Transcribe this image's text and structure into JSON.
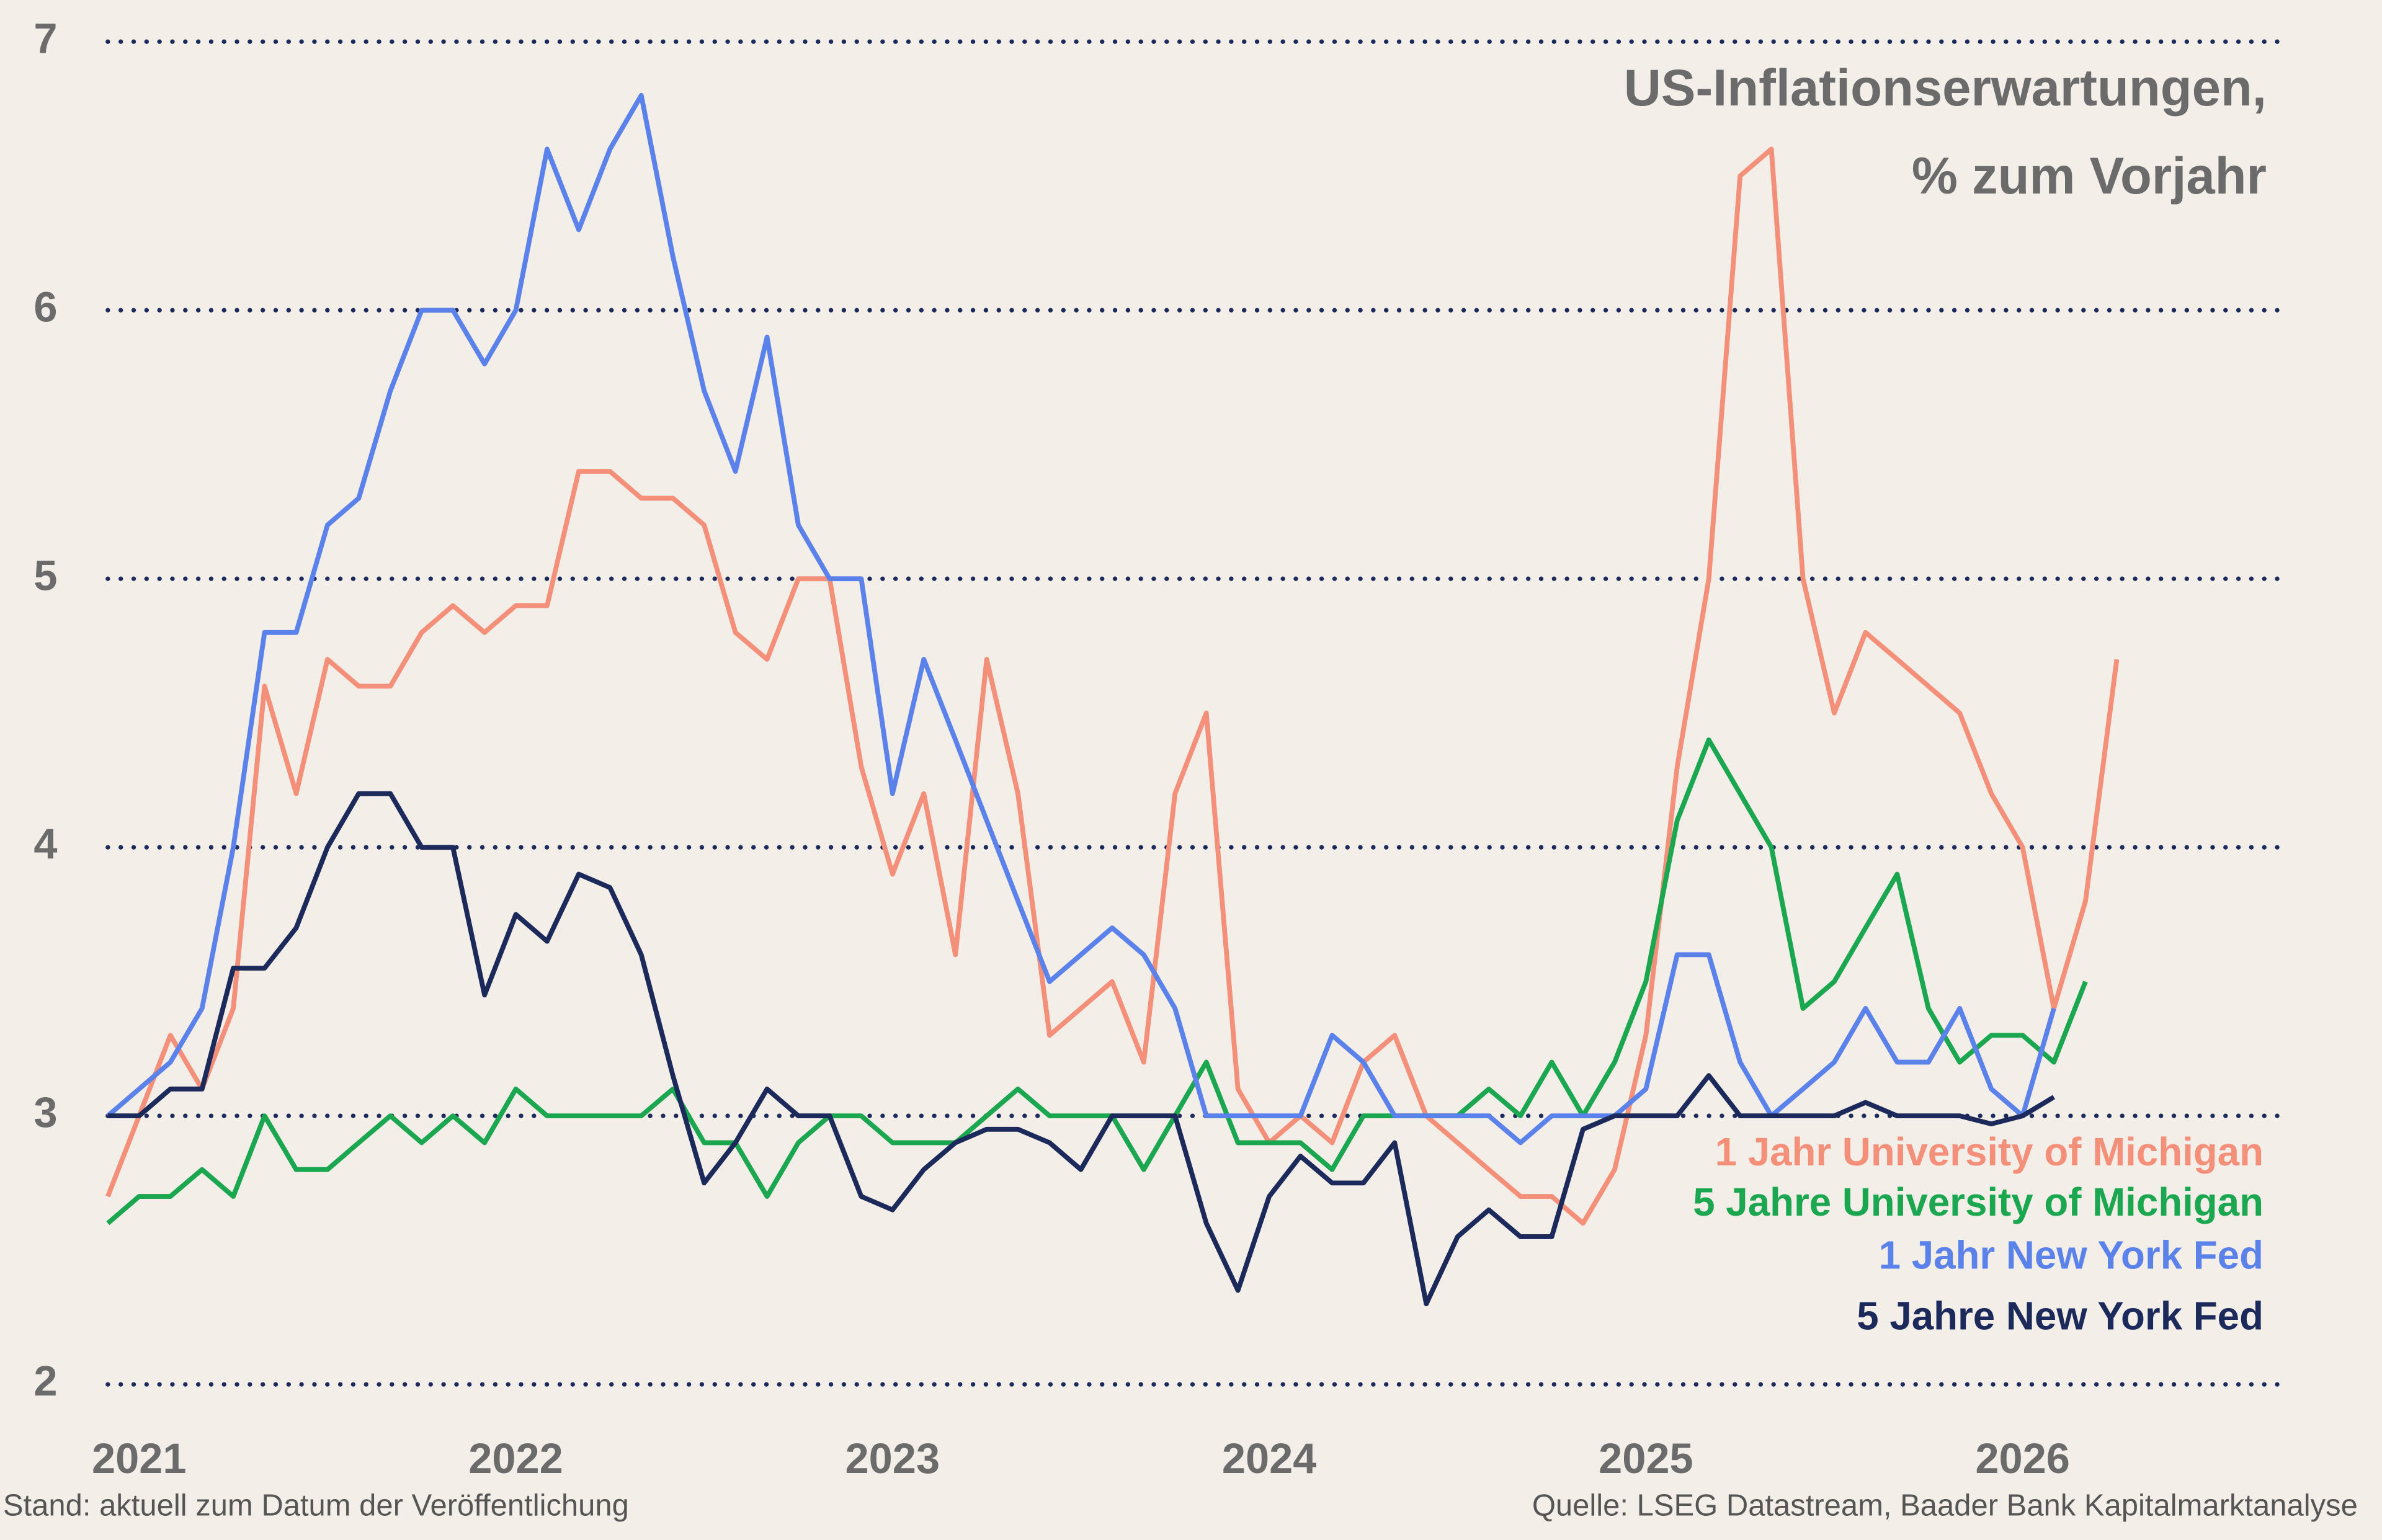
{
  "chart_data": {
    "type": "line",
    "title": [
      "US-Inflationserwartungen,",
      "% zum Vorjahr"
    ],
    "footnote": "Stand: aktuell zum Datum der Veröffentlichung",
    "source": "Quelle: LSEG Datastream, Baader Bank Kapitalmarktanalyse",
    "x": [
      2020.917,
      2021,
      2021.083,
      2021.167,
      2021.25,
      2021.333,
      2021.417,
      2021.5,
      2021.583,
      2021.667,
      2021.75,
      2021.833,
      2021.917,
      2022,
      2022.083,
      2022.167,
      2022.25,
      2022.333,
      2022.417,
      2022.5,
      2022.583,
      2022.667,
      2022.75,
      2022.833,
      2022.917,
      2023,
      2023.083,
      2023.167,
      2023.25,
      2023.333,
      2023.417,
      2023.5,
      2023.583,
      2023.667,
      2023.75,
      2023.833,
      2023.917,
      2024,
      2024.083,
      2024.167,
      2024.25,
      2024.333,
      2024.417,
      2024.5,
      2024.583,
      2024.667,
      2024.75,
      2024.833,
      2024.917,
      2025,
      2025.083,
      2025.167,
      2025.25,
      2025.333,
      2025.417,
      2025.5,
      2025.583,
      2025.667,
      2025.75,
      2025.833,
      2025.917,
      2026,
      2026.083,
      2026.167,
      2026.25
    ],
    "series": [
      {
        "name": "1 Jahr University of Michigan",
        "color": "#f4907a",
        "values": [
          2.7,
          3.0,
          3.3,
          3.1,
          3.4,
          4.6,
          4.2,
          4.7,
          4.6,
          4.6,
          4.8,
          4.9,
          4.8,
          4.9,
          4.9,
          5.4,
          5.4,
          5.3,
          5.3,
          5.2,
          4.8,
          4.7,
          5.0,
          5.0,
          4.3,
          3.9,
          4.2,
          3.6,
          4.7,
          4.2,
          3.3,
          3.4,
          3.5,
          3.2,
          4.2,
          4.5,
          3.1,
          2.9,
          3.0,
          2.9,
          3.2,
          3.3,
          3.0,
          2.9,
          2.8,
          2.7,
          2.7,
          2.6,
          2.8,
          3.3,
          4.3,
          5.0,
          6.5,
          6.6,
          5.0,
          4.5,
          4.8,
          4.7,
          4.6,
          4.5,
          4.2,
          4.0,
          3.4,
          3.8,
          4.7
        ]
      },
      {
        "name": "5 Jahre University of Michigan",
        "color": "#1ba650",
        "values": [
          2.6,
          2.7,
          2.7,
          2.8,
          2.7,
          3.0,
          2.8,
          2.8,
          2.9,
          3.0,
          2.9,
          3.0,
          2.9,
          3.1,
          3.0,
          3.0,
          3.0,
          3.0,
          3.1,
          2.9,
          2.9,
          2.7,
          2.9,
          3.0,
          3.0,
          2.9,
          2.9,
          2.9,
          3.0,
          3.1,
          3.0,
          3.0,
          3.0,
          2.8,
          3.0,
          3.2,
          2.9,
          2.9,
          2.9,
          2.8,
          3.0,
          3.0,
          3.0,
          3.0,
          3.1,
          3.0,
          3.2,
          3.0,
          3.2,
          3.5,
          4.1,
          4.4,
          4.2,
          4.0,
          3.4,
          3.5,
          3.7,
          3.9,
          3.4,
          3.2,
          3.3,
          3.3,
          3.2,
          3.5,
          null
        ]
      },
      {
        "name": "1 Jahr New York Fed",
        "color": "#5b82ea",
        "values": [
          3.0,
          3.1,
          3.2,
          3.4,
          4.0,
          4.8,
          4.8,
          5.2,
          5.3,
          5.7,
          6.0,
          6.0,
          5.8,
          6.0,
          6.6,
          6.3,
          6.6,
          6.8,
          6.2,
          5.7,
          5.4,
          5.9,
          5.2,
          5.0,
          5.0,
          4.2,
          4.7,
          4.4,
          4.1,
          3.8,
          3.5,
          3.6,
          3.7,
          3.6,
          3.4,
          3.0,
          3.0,
          3.0,
          3.0,
          3.3,
          3.2,
          3.0,
          3.0,
          3.0,
          3.0,
          2.9,
          3.0,
          3.0,
          3.0,
          3.1,
          3.6,
          3.6,
          3.2,
          3.0,
          3.1,
          3.2,
          3.4,
          3.2,
          3.2,
          3.4,
          3.1,
          3.0,
          3.4,
          null,
          null
        ]
      },
      {
        "name": "5 Jahre New York Fed",
        "color": "#1b2a5a",
        "values": [
          3.0,
          3.0,
          3.1,
          3.1,
          3.55,
          3.55,
          3.7,
          4.0,
          4.2,
          4.2,
          4.0,
          4.0,
          3.45,
          3.75,
          3.65,
          3.9,
          3.85,
          3.6,
          3.15,
          2.75,
          2.9,
          3.1,
          3.0,
          3.0,
          2.7,
          2.65,
          2.8,
          2.9,
          2.95,
          2.95,
          2.9,
          2.8,
          3.0,
          3.0,
          3.0,
          2.6,
          2.35,
          2.7,
          2.85,
          2.75,
          2.75,
          2.9,
          2.3,
          2.55,
          2.65,
          2.55,
          2.55,
          2.95,
          3.0,
          3.0,
          3.0,
          3.15,
          3.0,
          3.0,
          3.0,
          3.0,
          3.05,
          3.0,
          3.0,
          3.0,
          2.97,
          3.0,
          3.07,
          null,
          null
        ]
      }
    ],
    "xlim": [
      2020.917,
      2026.7
    ],
    "xticks": [
      2021,
      2022,
      2023,
      2024,
      2025,
      2026
    ],
    "ylim": [
      2,
      7
    ],
    "yticks": [
      2,
      3,
      4,
      5,
      6,
      7
    ],
    "grid": true,
    "grid_color": "#1b2a5a",
    "legend": "lower right"
  }
}
